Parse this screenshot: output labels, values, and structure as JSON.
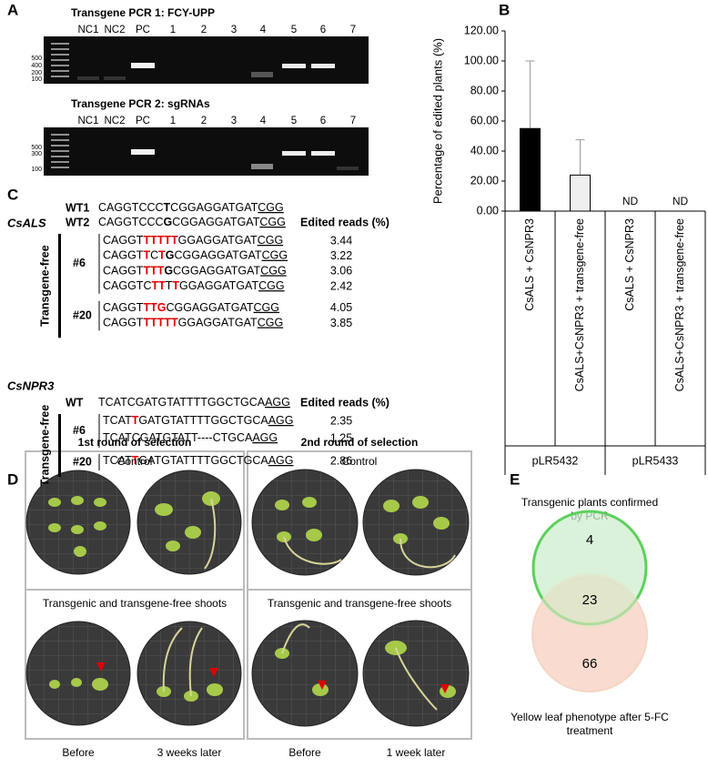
{
  "panel_labels": [
    "A",
    "B",
    "C",
    "D",
    "E"
  ],
  "panel_a": {
    "gels": [
      {
        "title": "Transgene PCR 1: FCY-UPP",
        "lanes": [
          "NC1",
          "NC2",
          "PC",
          "1",
          "2",
          "3",
          "4",
          "5",
          "6",
          "7"
        ],
        "ladder": [
          "500",
          "400",
          "200",
          "100"
        ]
      },
      {
        "title": "Transgene PCR 2: sgRNAs",
        "lanes": [
          "NC1",
          "NC2",
          "PC",
          "1",
          "2",
          "3",
          "4",
          "5",
          "6",
          "7"
        ],
        "ladder": [
          "500",
          "300",
          "100"
        ]
      }
    ]
  },
  "chart_data": [
    {
      "type": "bar",
      "ylabel": "Percentage of edited plants (%)",
      "categories": [
        "CsALS + CsNPR3",
        "CsALS+CsNPR3 + transgene-free",
        "CsALS + CsNPR3",
        "CsALS+CsNPR3 + transgene-free"
      ],
      "groups": [
        "pLR5432",
        "pLR5433"
      ],
      "values": [
        55,
        24,
        null,
        null
      ],
      "errors": [
        45,
        23.5,
        null,
        null
      ],
      "value_labels": [
        null,
        null,
        "ND",
        "ND"
      ],
      "colors": [
        "#000000",
        "#efefef",
        null,
        null
      ],
      "ylim": [
        0,
        120
      ],
      "yticks": [
        {
          "value": 0,
          "label": "0.00"
        },
        {
          "value": 20,
          "label": "20.00"
        },
        {
          "value": 40,
          "label": "40.00"
        },
        {
          "value": 60,
          "label": "60.00"
        },
        {
          "value": 80,
          "label": "80.00"
        },
        {
          "value": 100,
          "label": "100.00"
        },
        {
          "value": 120,
          "label": "120.00"
        }
      ]
    },
    {
      "type": "venn",
      "sets": [
        {
          "name": "Transgenic plants confirmed by PCR",
          "color": "#cdeecd",
          "edge": "#5cd05c"
        },
        {
          "name": "Yellow leaf phenotype after 5-FC treatment",
          "color": "#f9dccf",
          "edge": "#f5d5c6"
        }
      ],
      "values": [
        4,
        23,
        66
      ]
    }
  ],
  "panel_c": {
    "blocks": [
      {
        "gene": "CsALS",
        "header": "Edited reads (%)",
        "group_label": "Transgene-free",
        "references": [
          {
            "label": "WT1",
            "sequence": [
              {
                "text": "CAGGTCCC"
              },
              {
                "text": "T",
                "style": "bold"
              },
              {
                "text": "CGGAGGATGAT"
              },
              {
                "text": "CGG",
                "style": "underline"
              }
            ]
          },
          {
            "label": "WT2",
            "sequence": [
              {
                "text": "CAGGTCCC"
              },
              {
                "text": "G",
                "style": "bold"
              },
              {
                "text": "CGGAGGATGAT"
              },
              {
                "text": "CGG",
                "style": "underline"
              }
            ]
          }
        ],
        "samples": [
          {
            "label": "#6",
            "reads": [
              {
                "sequence": [
                  {
                    "text": "CAGGT"
                  },
                  {
                    "text": "TTTTT",
                    "style": "red"
                  },
                  {
                    "text": "GGAGGATGAT"
                  },
                  {
                    "text": "CGG",
                    "style": "underline"
                  }
                ],
                "percent": "3.44"
              },
              {
                "sequence": [
                  {
                    "text": "CAGGT"
                  },
                  {
                    "text": "T",
                    "style": "red"
                  },
                  {
                    "text": "C"
                  },
                  {
                    "text": "T",
                    "style": "red"
                  },
                  {
                    "text": "G",
                    "style": "bold"
                  },
                  {
                    "text": "CGGAGGATGAT"
                  },
                  {
                    "text": "CGG",
                    "style": "underline"
                  }
                ],
                "percent": "3.22"
              },
              {
                "sequence": [
                  {
                    "text": "CAGGT"
                  },
                  {
                    "text": "TTT",
                    "style": "red"
                  },
                  {
                    "text": "G",
                    "style": "bold"
                  },
                  {
                    "text": "CGGAGGATGAT"
                  },
                  {
                    "text": "CGG",
                    "style": "underline"
                  }
                ],
                "percent": "3.06"
              },
              {
                "sequence": [
                  {
                    "text": "CAGGTC"
                  },
                  {
                    "text": "TT",
                    "style": "red"
                  },
                  {
                    "text": "T"
                  },
                  {
                    "text": "T",
                    "style": "red"
                  },
                  {
                    "text": "GGAGGATGAT"
                  },
                  {
                    "text": "CGG",
                    "style": "underline"
                  }
                ],
                "percent": "2.42"
              }
            ]
          },
          {
            "label": "#20",
            "reads": [
              {
                "sequence": [
                  {
                    "text": "CAGGT"
                  },
                  {
                    "text": "TTG",
                    "style": "red"
                  },
                  {
                    "text": "CGGAGGATGAT"
                  },
                  {
                    "text": "CGG",
                    "style": "underline"
                  }
                ],
                "percent": "4.05"
              },
              {
                "sequence": [
                  {
                    "text": "CAGGT"
                  },
                  {
                    "text": "TTTTT",
                    "style": "red"
                  },
                  {
                    "text": "GGAGGATGAT"
                  },
                  {
                    "text": "CGG",
                    "style": "underline"
                  }
                ],
                "percent": "3.85"
              }
            ]
          }
        ]
      },
      {
        "gene": "CsNPR3",
        "header": "Edited reads (%)",
        "group_label": "Transgene-free",
        "references": [
          {
            "label": "WT",
            "sequence": [
              {
                "text": "TCATCGATGTATTTTGGCTGCA"
              },
              {
                "text": "AGG",
                "style": "underline"
              }
            ]
          }
        ],
        "samples": [
          {
            "label": "#6",
            "reads": [
              {
                "sequence": [
                  {
                    "text": "TCAT"
                  },
                  {
                    "text": "T",
                    "style": "red"
                  },
                  {
                    "text": "GATGTATTTTGGCTGCA"
                  },
                  {
                    "text": "AGG",
                    "style": "underline"
                  }
                ],
                "percent": "2.35"
              },
              {
                "sequence": [
                  {
                    "text": "TCATCGATGTATT----CTGCA"
                  },
                  {
                    "text": "AGG",
                    "style": "underline"
                  }
                ],
                "percent": "1.25"
              }
            ]
          },
          {
            "label": "#20",
            "reads": [
              {
                "sequence": [
                  {
                    "text": "TCAT"
                  },
                  {
                    "text": "T",
                    "style": "red"
                  },
                  {
                    "text": "GATGTATTTTGGCTGCA"
                  },
                  {
                    "text": "AGG",
                    "style": "underline"
                  }
                ],
                "percent": "2.86"
              }
            ]
          }
        ]
      }
    ]
  },
  "panel_d": {
    "rounds": [
      {
        "title": "1st round of selection",
        "top": "Control",
        "bottom": "Transgenic and transgene-free shoots",
        "captions": [
          "Before",
          "3 weeks later"
        ]
      },
      {
        "title": "2nd round of selection",
        "top": "Control",
        "bottom": "Transgenic and transgene-free shoots",
        "captions": [
          "Before",
          "1 week later"
        ]
      }
    ]
  }
}
